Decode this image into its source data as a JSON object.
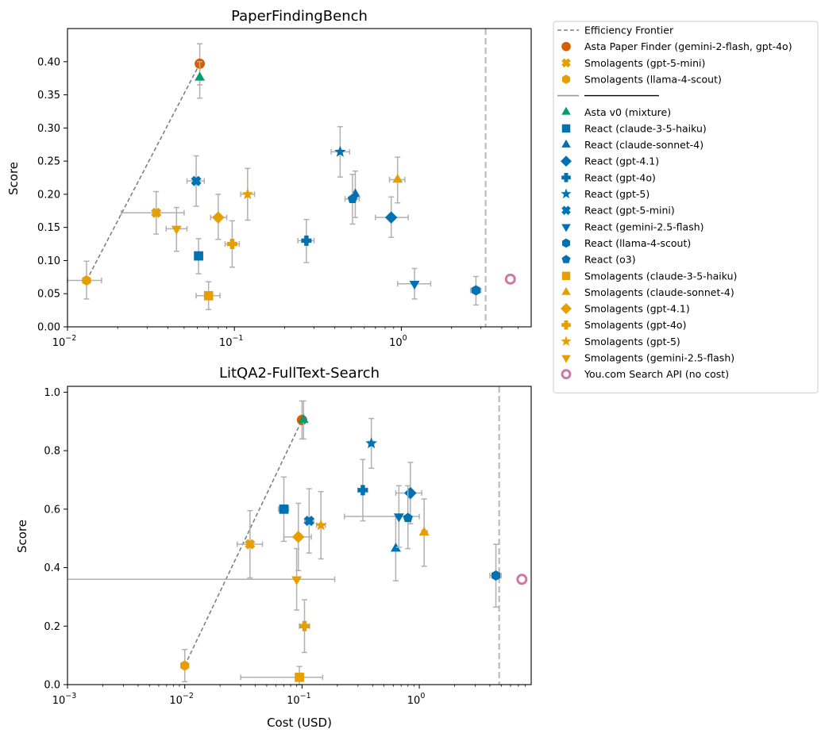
{
  "charts": [
    {
      "title": "PaperFindingBench",
      "xlabel": "",
      "ylabel": "Score",
      "xscale": "log",
      "xlim": [
        0.01,
        6
      ],
      "ylim": [
        0,
        0.45
      ],
      "xticks": [
        {
          "v": 0.01,
          "b": "10",
          "e": "−2"
        },
        {
          "v": 0.1,
          "b": "10",
          "e": "−1"
        },
        {
          "v": 1,
          "b": "10",
          "e": "0"
        }
      ],
      "yticks": [
        0,
        0.05,
        0.1,
        0.15,
        0.2,
        0.25,
        0.3,
        0.35,
        0.4
      ],
      "ytick_labels": [
        "0.00",
        "0.05",
        "0.10",
        "0.15",
        "0.20",
        "0.25",
        "0.30",
        "0.35",
        "0.40"
      ],
      "cost_cutoff_line": 3.2,
      "frontier": [
        [
          0.013,
          0.07
        ],
        [
          0.062,
          0.397
        ]
      ]
    },
    {
      "title": "LitQA2-FullText-Search",
      "xlabel": "Cost (USD)",
      "ylabel": "Score",
      "xscale": "log",
      "xlim": [
        0.001,
        9
      ],
      "ylim": [
        0,
        1.02
      ],
      "xticks": [
        {
          "v": 0.001,
          "b": "10",
          "e": "−3"
        },
        {
          "v": 0.01,
          "b": "10",
          "e": "−2"
        },
        {
          "v": 0.1,
          "b": "10",
          "e": "−1"
        },
        {
          "v": 1,
          "b": "10",
          "e": "0"
        }
      ],
      "yticks": [
        0,
        0.2,
        0.4,
        0.6,
        0.8,
        1.0
      ],
      "ytick_labels": [
        "0.0",
        "0.2",
        "0.4",
        "0.6",
        "0.8",
        "1.0"
      ],
      "cost_cutoff_line": 4.8,
      "frontier": [
        [
          0.01,
          0.065
        ],
        [
          0.1,
          0.905
        ]
      ]
    }
  ],
  "chart_data": [
    {
      "type": "scatter",
      "title": "PaperFindingBench",
      "points": [
        {
          "series": "Asta Paper Finder (gemini-2-flash, gpt-4o)",
          "x": 0.062,
          "y": 0.397,
          "yerr": [
            0.365,
            0.427
          ]
        },
        {
          "series": "Asta v0 (mixture)",
          "x": 0.062,
          "y": 0.376,
          "yerr": [
            0.345,
            0.4
          ]
        },
        {
          "series": "Smolagents (gpt-5-mini)",
          "x": 0.034,
          "y": 0.172,
          "xerr": [
            0.021,
            0.05
          ],
          "yerr": [
            0.14,
            0.204
          ]
        },
        {
          "series": "Smolagents (llama-4-scout)",
          "x": 0.013,
          "y": 0.07,
          "xerr": [
            0.01,
            0.016
          ],
          "yerr": [
            0.042,
            0.099
          ]
        },
        {
          "series": "React (claude-3-5-haiku)",
          "x": 0.061,
          "y": 0.107,
          "yerr": [
            0.08,
            0.133
          ]
        },
        {
          "series": "React (claude-sonnet-4)",
          "x": 0.53,
          "y": 0.2,
          "yerr": [
            0.165,
            0.235
          ]
        },
        {
          "series": "React (gpt-4.1)",
          "x": 0.87,
          "y": 0.165,
          "xerr": [
            0.7,
            1.1
          ],
          "yerr": [
            0.135,
            0.196
          ]
        },
        {
          "series": "React (gpt-4o)",
          "x": 0.27,
          "y": 0.13,
          "xerr": [
            0.24,
            0.3
          ],
          "yerr": [
            0.097,
            0.162
          ]
        },
        {
          "series": "React (gpt-5)",
          "x": 0.43,
          "y": 0.264,
          "xerr": [
            0.38,
            0.49
          ],
          "yerr": [
            0.226,
            0.302
          ]
        },
        {
          "series": "React (gpt-5-mini)",
          "x": 0.059,
          "y": 0.22,
          "xerr": [
            0.052,
            0.066
          ],
          "yerr": [
            0.182,
            0.258
          ]
        },
        {
          "series": "React (gemini-2.5-flash)",
          "x": 1.2,
          "y": 0.065,
          "xerr": [
            0.95,
            1.5
          ],
          "yerr": [
            0.042,
            0.088
          ]
        },
        {
          "series": "React (llama-4-scout)",
          "x": 2.8,
          "y": 0.055,
          "xerr": [
            2.6,
            3.0
          ],
          "yerr": [
            0.033,
            0.076
          ]
        },
        {
          "series": "React (o3)",
          "x": 0.51,
          "y": 0.193,
          "xerr": [
            0.46,
            0.56
          ],
          "yerr": [
            0.155,
            0.23
          ]
        },
        {
          "series": "Smolagents (claude-3-5-haiku)",
          "x": 0.07,
          "y": 0.047,
          "xerr": [
            0.059,
            0.082
          ],
          "yerr": [
            0.026,
            0.068
          ]
        },
        {
          "series": "Smolagents (claude-sonnet-4)",
          "x": 0.95,
          "y": 0.222,
          "xerr": [
            0.85,
            1.05
          ],
          "yerr": [
            0.187,
            0.256
          ]
        },
        {
          "series": "Smolagents (gpt-4.1)",
          "x": 0.08,
          "y": 0.165,
          "xerr": [
            0.072,
            0.09
          ],
          "yerr": [
            0.132,
            0.2
          ]
        },
        {
          "series": "Smolagents (gpt-4o)",
          "x": 0.097,
          "y": 0.125,
          "xerr": [
            0.088,
            0.107
          ],
          "yerr": [
            0.09,
            0.16
          ]
        },
        {
          "series": "Smolagents (gpt-5)",
          "x": 0.12,
          "y": 0.2,
          "xerr": [
            0.109,
            0.132
          ],
          "yerr": [
            0.161,
            0.239
          ]
        },
        {
          "series": "Smolagents (gemini-2.5-flash)",
          "x": 0.045,
          "y": 0.148,
          "xerr": [
            0.039,
            0.052
          ],
          "yerr": [
            0.114,
            0.18
          ]
        },
        {
          "series": "You.com Search API (no cost)",
          "x": 4.5,
          "y": 0.072
        }
      ]
    },
    {
      "type": "scatter",
      "title": "LitQA2-FullText-Search",
      "points": [
        {
          "series": "Asta Paper Finder (gemini-2-flash, gpt-4o)",
          "x": 0.1,
          "y": 0.905,
          "yerr": [
            0.84,
            0.97
          ]
        },
        {
          "series": "Asta v0 (mixture)",
          "x": 0.103,
          "y": 0.905,
          "yerr": [
            0.84,
            0.97
          ]
        },
        {
          "series": "Smolagents (gpt-5-mini)",
          "x": 0.036,
          "y": 0.48,
          "xerr": [
            0.028,
            0.046
          ],
          "yerr": [
            0.365,
            0.595
          ]
        },
        {
          "series": "Smolagents (llama-4-scout)",
          "x": 0.01,
          "y": 0.065,
          "xerr": [
            0.0095,
            0.0106
          ],
          "yerr": [
            0.01,
            0.12
          ]
        },
        {
          "series": "React (claude-3-5-haiku)",
          "x": 0.07,
          "y": 0.6,
          "xerr": [
            0.063,
            0.077
          ],
          "yerr": [
            0.49,
            0.71
          ]
        },
        {
          "series": "React (claude-sonnet-4)",
          "x": 0.63,
          "y": 0.465,
          "yerr": [
            0.355,
            0.575
          ]
        },
        {
          "series": "React (gpt-4.1)",
          "x": 0.84,
          "y": 0.655,
          "xerr": [
            0.63,
            1.05
          ],
          "yerr": [
            0.55,
            0.76
          ]
        },
        {
          "series": "React (gpt-4o)",
          "x": 0.33,
          "y": 0.665,
          "xerr": [
            0.3,
            0.36
          ],
          "yerr": [
            0.56,
            0.77
          ]
        },
        {
          "series": "React (gpt-5)",
          "x": 0.39,
          "y": 0.825,
          "xerr": [
            0.37,
            0.41
          ],
          "yerr": [
            0.74,
            0.91
          ]
        },
        {
          "series": "React (gpt-5-mini)",
          "x": 0.115,
          "y": 0.56,
          "xerr": [
            0.105,
            0.126
          ],
          "yerr": [
            0.45,
            0.67
          ]
        },
        {
          "series": "React (gemini-2.5-flash)",
          "x": 0.67,
          "y": 0.575,
          "xerr": [
            0.23,
            1.0
          ],
          "yerr": [
            0.47,
            0.68
          ]
        },
        {
          "series": "React (llama-4-scout)",
          "x": 4.5,
          "y": 0.373,
          "xerr": [
            4.0,
            5.0
          ],
          "yerr": [
            0.265,
            0.48
          ]
        },
        {
          "series": "React (o3)",
          "x": 0.8,
          "y": 0.57,
          "xerr": [
            0.75,
            0.85
          ],
          "yerr": [
            0.465,
            0.68
          ]
        },
        {
          "series": "Smolagents (claude-3-5-haiku)",
          "x": 0.095,
          "y": 0.025,
          "xerr": [
            0.03,
            0.15
          ],
          "yerr": [
            0.0,
            0.062
          ]
        },
        {
          "series": "Smolagents (claude-sonnet-4)",
          "x": 1.1,
          "y": 0.52,
          "xerr": [
            1.05,
            1.17
          ],
          "yerr": [
            0.405,
            0.635
          ]
        },
        {
          "series": "Smolagents (gpt-4.1)",
          "x": 0.093,
          "y": 0.505,
          "xerr": [
            0.07,
            0.12
          ],
          "yerr": [
            0.39,
            0.62
          ]
        },
        {
          "series": "Smolagents (gpt-4o)",
          "x": 0.105,
          "y": 0.2,
          "xerr": [
            0.095,
            0.116
          ],
          "yerr": [
            0.11,
            0.29
          ]
        },
        {
          "series": "Smolagents (gpt-5)",
          "x": 0.145,
          "y": 0.545,
          "xerr": [
            0.133,
            0.158
          ],
          "yerr": [
            0.43,
            0.66
          ]
        },
        {
          "series": "Smolagents (gemini-2.5-flash)",
          "x": 0.09,
          "y": 0.36,
          "xerr": [
            0.0009,
            0.19
          ],
          "yerr": [
            0.255,
            0.465
          ]
        },
        {
          "series": "You.com Search API (no cost)",
          "x": 7.5,
          "y": 0.36
        }
      ]
    }
  ],
  "legend": {
    "placement": "outside-right",
    "entries": [
      {
        "label": "Efficiency Frontier",
        "kind": "line-dashed",
        "color": "#808080"
      },
      {
        "label": "Asta Paper Finder (gemini-2-flash, gpt-4o)",
        "kind": "marker",
        "marker": "circle",
        "color": "#d55e00"
      },
      {
        "label": "Smolagents (gpt-5-mini)",
        "kind": "marker",
        "marker": "x",
        "color": "#e69f00"
      },
      {
        "label": "Smolagents (llama-4-scout)",
        "kind": "marker",
        "marker": "hexagon",
        "color": "#e69f00"
      },
      {
        "label": "",
        "kind": "separator",
        "color": "#999999"
      },
      {
        "label": "Asta v0 (mixture)",
        "kind": "marker",
        "marker": "triangle-up",
        "color": "#009e73"
      },
      {
        "label": "React (claude-3-5-haiku)",
        "kind": "marker",
        "marker": "square",
        "color": "#0072b2"
      },
      {
        "label": "React (claude-sonnet-4)",
        "kind": "marker",
        "marker": "triangle-up",
        "color": "#0072b2"
      },
      {
        "label": "React (gpt-4.1)",
        "kind": "marker",
        "marker": "diamond",
        "color": "#0072b2"
      },
      {
        "label": "React (gpt-4o)",
        "kind": "marker",
        "marker": "plus",
        "color": "#0072b2"
      },
      {
        "label": "React (gpt-5)",
        "kind": "marker",
        "marker": "star",
        "color": "#0072b2"
      },
      {
        "label": "React (gpt-5-mini)",
        "kind": "marker",
        "marker": "x",
        "color": "#0072b2"
      },
      {
        "label": "React (gemini-2.5-flash)",
        "kind": "marker",
        "marker": "triangle-down",
        "color": "#0072b2"
      },
      {
        "label": "React (llama-4-scout)",
        "kind": "marker",
        "marker": "hexagon",
        "color": "#0072b2"
      },
      {
        "label": "React (o3)",
        "kind": "marker",
        "marker": "pentagon",
        "color": "#0072b2"
      },
      {
        "label": "Smolagents (claude-3-5-haiku)",
        "kind": "marker",
        "marker": "square",
        "color": "#e69f00"
      },
      {
        "label": "Smolagents (claude-sonnet-4)",
        "kind": "marker",
        "marker": "triangle-up",
        "color": "#e69f00"
      },
      {
        "label": "Smolagents (gpt-4.1)",
        "kind": "marker",
        "marker": "diamond",
        "color": "#e69f00"
      },
      {
        "label": "Smolagents (gpt-4o)",
        "kind": "marker",
        "marker": "plus",
        "color": "#e69f00"
      },
      {
        "label": "Smolagents (gpt-5)",
        "kind": "marker",
        "marker": "star",
        "color": "#e69f00"
      },
      {
        "label": "Smolagents (gemini-2.5-flash)",
        "kind": "marker",
        "marker": "triangle-down",
        "color": "#e69f00"
      },
      {
        "label": "You.com Search API (no cost)",
        "kind": "marker",
        "marker": "ring",
        "color": "#cc79a7"
      }
    ]
  },
  "colors": {
    "frontier": "#808080",
    "cutoff": "#bbbbbb",
    "errorbar": "#b0b0b0",
    "axis": "#000000"
  }
}
